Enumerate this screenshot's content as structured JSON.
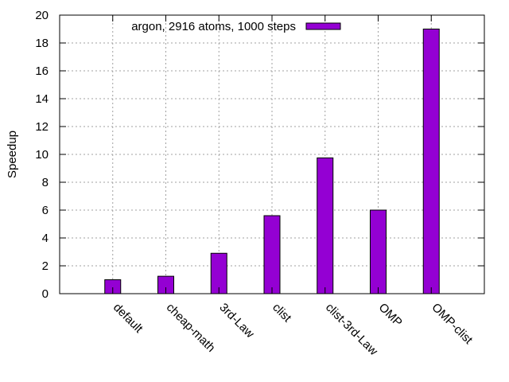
{
  "chart_data": {
    "type": "bar",
    "categories": [
      "default",
      "cheap-math",
      "3rd-Law",
      "clist",
      "clist-3rd-Law",
      "OMP",
      "OMP-clist"
    ],
    "series": [
      {
        "name": "argon, 2916 atoms, 1000 steps",
        "values": [
          1.0,
          1.25,
          2.9,
          5.6,
          9.75,
          6.0,
          19.0
        ],
        "color": "#9400d3"
      }
    ],
    "title": "",
    "xlabel": "",
    "ylabel": "Speedup",
    "ylim": [
      0,
      20
    ],
    "yticks": [
      0,
      2,
      4,
      6,
      8,
      10,
      12,
      14,
      16,
      18,
      20
    ],
    "grid": true,
    "legend_position": "top"
  }
}
